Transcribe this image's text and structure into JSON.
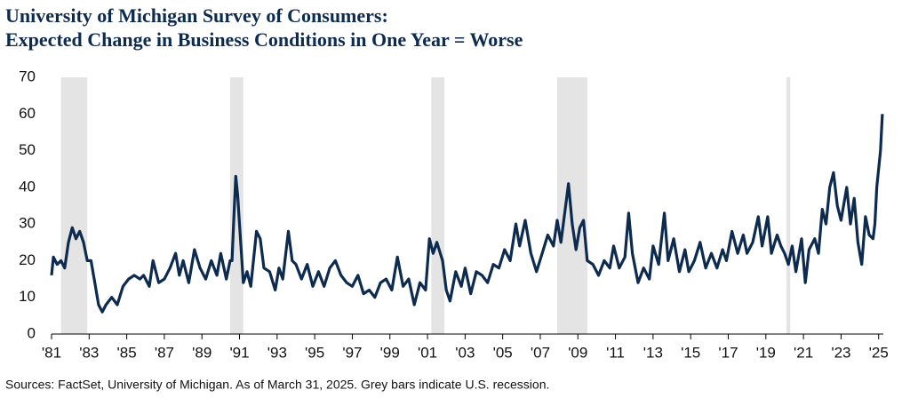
{
  "chart_data": {
    "type": "line",
    "title": "University of Michigan Survey of Consumers:",
    "subtitle": "Expected Change in Business Conditions in One Year = Worse",
    "source": "Sources: FactSet, University of Michigan. As of March 31, 2025. Grey bars indicate U.S. recession.",
    "x": [
      1981.0,
      1981.1,
      1981.3,
      1981.5,
      1981.7,
      1981.9,
      1982.1,
      1982.3,
      1982.5,
      1982.7,
      1982.9,
      1983.1,
      1983.3,
      1983.5,
      1983.7,
      1983.9,
      1984.2,
      1984.5,
      1984.8,
      1985.1,
      1985.4,
      1985.7,
      1985.9,
      1986.2,
      1986.4,
      1986.7,
      1987.0,
      1987.3,
      1987.6,
      1987.8,
      1988.0,
      1988.3,
      1988.6,
      1988.9,
      1989.2,
      1989.5,
      1989.8,
      1990.0,
      1990.3,
      1990.5,
      1990.6,
      1990.7,
      1990.8,
      1990.9,
      1991.0,
      1991.2,
      1991.4,
      1991.6,
      1991.9,
      1992.1,
      1992.3,
      1992.6,
      1992.9,
      1993.1,
      1993.3,
      1993.6,
      1993.8,
      1994.0,
      1994.3,
      1994.6,
      1994.9,
      1995.2,
      1995.5,
      1995.8,
      1996.1,
      1996.4,
      1996.7,
      1997.0,
      1997.3,
      1997.6,
      1997.9,
      1998.2,
      1998.5,
      1998.8,
      1999.1,
      1999.4,
      1999.7,
      2000.0,
      2000.3,
      2000.6,
      2000.9,
      2001.1,
      2001.3,
      2001.5,
      2001.8,
      2002.0,
      2002.2,
      2002.5,
      2002.8,
      2003.0,
      2003.3,
      2003.6,
      2003.9,
      2004.2,
      2004.5,
      2004.8,
      2005.1,
      2005.4,
      2005.7,
      2005.9,
      2006.2,
      2006.5,
      2006.8,
      2007.1,
      2007.4,
      2007.7,
      2007.9,
      2008.1,
      2008.4,
      2008.5,
      2008.7,
      2008.9,
      2009.1,
      2009.3,
      2009.5,
      2009.8,
      2010.1,
      2010.4,
      2010.7,
      2010.9,
      2011.2,
      2011.5,
      2011.7,
      2011.9,
      2012.2,
      2012.5,
      2012.8,
      2013.0,
      2013.3,
      2013.6,
      2013.8,
      2014.1,
      2014.4,
      2014.7,
      2014.9,
      2015.2,
      2015.5,
      2015.8,
      2016.1,
      2016.4,
      2016.7,
      2016.9,
      2017.2,
      2017.5,
      2017.8,
      2018.0,
      2018.3,
      2018.6,
      2018.8,
      2019.1,
      2019.3,
      2019.6,
      2019.8,
      2020.0,
      2020.2,
      2020.4,
      2020.6,
      2020.9,
      2021.1,
      2021.3,
      2021.6,
      2021.8,
      2022.0,
      2022.2,
      2022.4,
      2022.6,
      2022.8,
      2023.0,
      2023.3,
      2023.5,
      2023.7,
      2023.9,
      2024.1,
      2024.3,
      2024.5,
      2024.7,
      2024.8,
      2024.9,
      2025.1,
      2025.2
    ],
    "series": [
      {
        "name": "Worse",
        "color": "#0d2a4f",
        "values": [
          16,
          21,
          19,
          20,
          18,
          25,
          29,
          26,
          28,
          25,
          20,
          20,
          14,
          8,
          6,
          8,
          10,
          8,
          13,
          15,
          16,
          15,
          16,
          13,
          20,
          14,
          15,
          18,
          22,
          16,
          20,
          14,
          23,
          18,
          15,
          20,
          16,
          22,
          15,
          20,
          20,
          32,
          43,
          38,
          30,
          14,
          17,
          13,
          28,
          26,
          18,
          17,
          12,
          18,
          15,
          28,
          20,
          19,
          15,
          19,
          13,
          17,
          13,
          18,
          20,
          16,
          14,
          13,
          16,
          11,
          12,
          10,
          14,
          15,
          12,
          21,
          13,
          15,
          8,
          14,
          12,
          26,
          22,
          25,
          20,
          12,
          9,
          17,
          13,
          18,
          11,
          17,
          16,
          14,
          19,
          18,
          23,
          20,
          30,
          24,
          31,
          22,
          17,
          22,
          27,
          24,
          31,
          25,
          37,
          41,
          30,
          23,
          29,
          31,
          20,
          19,
          16,
          20,
          18,
          24,
          18,
          21,
          33,
          22,
          14,
          18,
          15,
          24,
          19,
          33,
          20,
          26,
          17,
          23,
          17,
          20,
          25,
          18,
          22,
          18,
          23,
          20,
          28,
          22,
          27,
          22,
          25,
          32,
          24,
          32,
          22,
          27,
          24,
          22,
          19,
          24,
          17,
          26,
          14,
          23,
          26,
          22,
          34,
          30,
          40,
          44,
          35,
          31,
          40,
          30,
          37,
          25,
          19,
          32,
          27,
          26,
          30,
          40,
          50,
          60
        ]
      }
    ],
    "recessions": [
      [
        1981.5,
        1982.9
      ],
      [
        1990.5,
        1991.2
      ],
      [
        2001.2,
        2001.9
      ],
      [
        2007.9,
        2009.5
      ],
      [
        2020.1,
        2020.3
      ]
    ],
    "xlim": [
      1981,
      2025.25
    ],
    "xticks": [
      {
        "value": 1981,
        "label": "'81"
      },
      {
        "value": 1983,
        "label": "'83"
      },
      {
        "value": 1985,
        "label": "'85"
      },
      {
        "value": 1987,
        "label": "'87"
      },
      {
        "value": 1989,
        "label": "'89"
      },
      {
        "value": 1991,
        "label": "'91"
      },
      {
        "value": 1993,
        "label": "'93"
      },
      {
        "value": 1995,
        "label": "'95"
      },
      {
        "value": 1997,
        "label": "'97"
      },
      {
        "value": 1999,
        "label": "'99"
      },
      {
        "value": 2001,
        "label": "'01"
      },
      {
        "value": 2003,
        "label": "'03"
      },
      {
        "value": 2005,
        "label": "'05"
      },
      {
        "value": 2007,
        "label": "'07"
      },
      {
        "value": 2009,
        "label": "'09"
      },
      {
        "value": 2011,
        "label": "'11"
      },
      {
        "value": 2013,
        "label": "'13"
      },
      {
        "value": 2015,
        "label": "'15"
      },
      {
        "value": 2017,
        "label": "'17"
      },
      {
        "value": 2019,
        "label": "'19"
      },
      {
        "value": 2021,
        "label": "'21"
      },
      {
        "value": 2023,
        "label": "'23"
      },
      {
        "value": 2025,
        "label": "'25"
      }
    ],
    "ylim": [
      0,
      70
    ],
    "yticks": [
      0,
      10,
      20,
      30,
      40,
      50,
      60,
      70
    ],
    "grid": false,
    "recession_color": "#e4e4e4"
  }
}
